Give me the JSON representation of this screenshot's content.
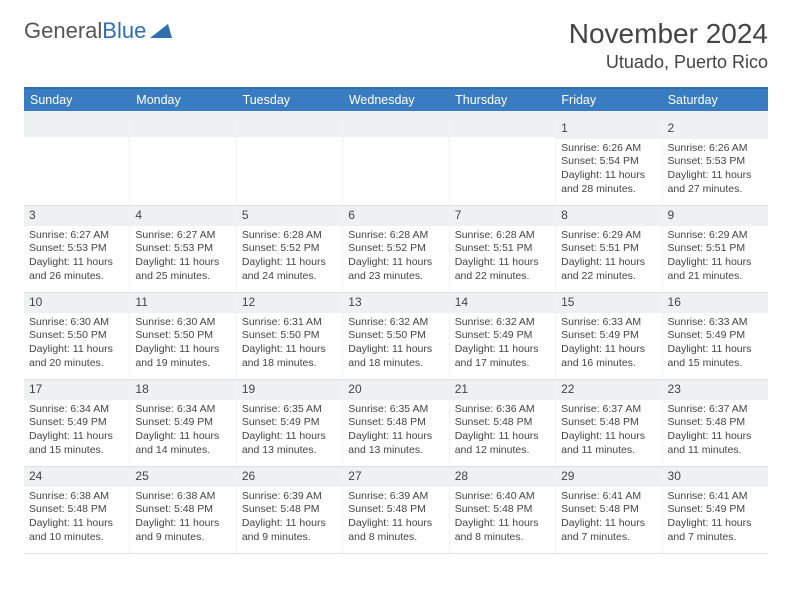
{
  "logo": {
    "text1": "General",
    "text2": "Blue"
  },
  "header": {
    "title": "November 2024",
    "location": "Utuado, Puerto Rico"
  },
  "colors": {
    "header_bar": "#3a7cc2",
    "header_top_border": "#2f6fb0",
    "daynum_bg": "#eef0f2",
    "text": "#444444",
    "logo_gray": "#555555",
    "logo_blue": "#2f6fb0"
  },
  "weekdays": [
    "Sunday",
    "Monday",
    "Tuesday",
    "Wednesday",
    "Thursday",
    "Friday",
    "Saturday"
  ],
  "weeks": [
    [
      {
        "num": "",
        "sunrise": "",
        "sunset": "",
        "daylight": ""
      },
      {
        "num": "",
        "sunrise": "",
        "sunset": "",
        "daylight": ""
      },
      {
        "num": "",
        "sunrise": "",
        "sunset": "",
        "daylight": ""
      },
      {
        "num": "",
        "sunrise": "",
        "sunset": "",
        "daylight": ""
      },
      {
        "num": "",
        "sunrise": "",
        "sunset": "",
        "daylight": ""
      },
      {
        "num": "1",
        "sunrise": "Sunrise: 6:26 AM",
        "sunset": "Sunset: 5:54 PM",
        "daylight": "Daylight: 11 hours and 28 minutes."
      },
      {
        "num": "2",
        "sunrise": "Sunrise: 6:26 AM",
        "sunset": "Sunset: 5:53 PM",
        "daylight": "Daylight: 11 hours and 27 minutes."
      }
    ],
    [
      {
        "num": "3",
        "sunrise": "Sunrise: 6:27 AM",
        "sunset": "Sunset: 5:53 PM",
        "daylight": "Daylight: 11 hours and 26 minutes."
      },
      {
        "num": "4",
        "sunrise": "Sunrise: 6:27 AM",
        "sunset": "Sunset: 5:53 PM",
        "daylight": "Daylight: 11 hours and 25 minutes."
      },
      {
        "num": "5",
        "sunrise": "Sunrise: 6:28 AM",
        "sunset": "Sunset: 5:52 PM",
        "daylight": "Daylight: 11 hours and 24 minutes."
      },
      {
        "num": "6",
        "sunrise": "Sunrise: 6:28 AM",
        "sunset": "Sunset: 5:52 PM",
        "daylight": "Daylight: 11 hours and 23 minutes."
      },
      {
        "num": "7",
        "sunrise": "Sunrise: 6:28 AM",
        "sunset": "Sunset: 5:51 PM",
        "daylight": "Daylight: 11 hours and 22 minutes."
      },
      {
        "num": "8",
        "sunrise": "Sunrise: 6:29 AM",
        "sunset": "Sunset: 5:51 PM",
        "daylight": "Daylight: 11 hours and 22 minutes."
      },
      {
        "num": "9",
        "sunrise": "Sunrise: 6:29 AM",
        "sunset": "Sunset: 5:51 PM",
        "daylight": "Daylight: 11 hours and 21 minutes."
      }
    ],
    [
      {
        "num": "10",
        "sunrise": "Sunrise: 6:30 AM",
        "sunset": "Sunset: 5:50 PM",
        "daylight": "Daylight: 11 hours and 20 minutes."
      },
      {
        "num": "11",
        "sunrise": "Sunrise: 6:30 AM",
        "sunset": "Sunset: 5:50 PM",
        "daylight": "Daylight: 11 hours and 19 minutes."
      },
      {
        "num": "12",
        "sunrise": "Sunrise: 6:31 AM",
        "sunset": "Sunset: 5:50 PM",
        "daylight": "Daylight: 11 hours and 18 minutes."
      },
      {
        "num": "13",
        "sunrise": "Sunrise: 6:32 AM",
        "sunset": "Sunset: 5:50 PM",
        "daylight": "Daylight: 11 hours and 18 minutes."
      },
      {
        "num": "14",
        "sunrise": "Sunrise: 6:32 AM",
        "sunset": "Sunset: 5:49 PM",
        "daylight": "Daylight: 11 hours and 17 minutes."
      },
      {
        "num": "15",
        "sunrise": "Sunrise: 6:33 AM",
        "sunset": "Sunset: 5:49 PM",
        "daylight": "Daylight: 11 hours and 16 minutes."
      },
      {
        "num": "16",
        "sunrise": "Sunrise: 6:33 AM",
        "sunset": "Sunset: 5:49 PM",
        "daylight": "Daylight: 11 hours and 15 minutes."
      }
    ],
    [
      {
        "num": "17",
        "sunrise": "Sunrise: 6:34 AM",
        "sunset": "Sunset: 5:49 PM",
        "daylight": "Daylight: 11 hours and 15 minutes."
      },
      {
        "num": "18",
        "sunrise": "Sunrise: 6:34 AM",
        "sunset": "Sunset: 5:49 PM",
        "daylight": "Daylight: 11 hours and 14 minutes."
      },
      {
        "num": "19",
        "sunrise": "Sunrise: 6:35 AM",
        "sunset": "Sunset: 5:49 PM",
        "daylight": "Daylight: 11 hours and 13 minutes."
      },
      {
        "num": "20",
        "sunrise": "Sunrise: 6:35 AM",
        "sunset": "Sunset: 5:48 PM",
        "daylight": "Daylight: 11 hours and 13 minutes."
      },
      {
        "num": "21",
        "sunrise": "Sunrise: 6:36 AM",
        "sunset": "Sunset: 5:48 PM",
        "daylight": "Daylight: 11 hours and 12 minutes."
      },
      {
        "num": "22",
        "sunrise": "Sunrise: 6:37 AM",
        "sunset": "Sunset: 5:48 PM",
        "daylight": "Daylight: 11 hours and 11 minutes."
      },
      {
        "num": "23",
        "sunrise": "Sunrise: 6:37 AM",
        "sunset": "Sunset: 5:48 PM",
        "daylight": "Daylight: 11 hours and 11 minutes."
      }
    ],
    [
      {
        "num": "24",
        "sunrise": "Sunrise: 6:38 AM",
        "sunset": "Sunset: 5:48 PM",
        "daylight": "Daylight: 11 hours and 10 minutes."
      },
      {
        "num": "25",
        "sunrise": "Sunrise: 6:38 AM",
        "sunset": "Sunset: 5:48 PM",
        "daylight": "Daylight: 11 hours and 9 minutes."
      },
      {
        "num": "26",
        "sunrise": "Sunrise: 6:39 AM",
        "sunset": "Sunset: 5:48 PM",
        "daylight": "Daylight: 11 hours and 9 minutes."
      },
      {
        "num": "27",
        "sunrise": "Sunrise: 6:39 AM",
        "sunset": "Sunset: 5:48 PM",
        "daylight": "Daylight: 11 hours and 8 minutes."
      },
      {
        "num": "28",
        "sunrise": "Sunrise: 6:40 AM",
        "sunset": "Sunset: 5:48 PM",
        "daylight": "Daylight: 11 hours and 8 minutes."
      },
      {
        "num": "29",
        "sunrise": "Sunrise: 6:41 AM",
        "sunset": "Sunset: 5:48 PM",
        "daylight": "Daylight: 11 hours and 7 minutes."
      },
      {
        "num": "30",
        "sunrise": "Sunrise: 6:41 AM",
        "sunset": "Sunset: 5:49 PM",
        "daylight": "Daylight: 11 hours and 7 minutes."
      }
    ]
  ]
}
